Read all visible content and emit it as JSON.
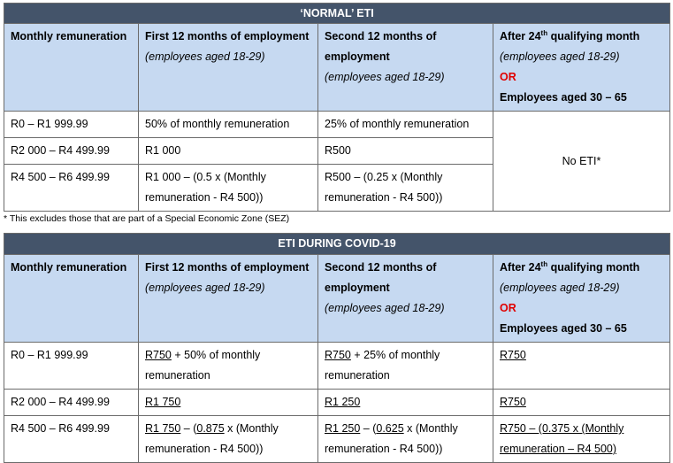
{
  "tables": [
    {
      "title": "‘NORMAL’ ETI",
      "headers": [
        {
          "main": "Monthly remuneration"
        },
        {
          "main": "First 12 months of employment",
          "sub": "(employees aged 18-29)"
        },
        {
          "main": "Second 12 months of employment",
          "sub": "(employees aged 18-29)"
        },
        {
          "main": "After 24",
          "sup": "th",
          "rest": " qualifying month",
          "sub": "(employees aged 18-29)",
          "or": "OR",
          "alt": "Employees aged 30 – 65"
        }
      ],
      "rows": [
        [
          "R0 – R1 999.99",
          "50% of monthly remuneration",
          "25% of monthly remuneration"
        ],
        [
          "R2 000 – R4 499.99",
          "R1 000",
          "R500"
        ],
        [
          "R4 500 – R6 499.99",
          "R1 000 – (0.5 x (Monthly remuneration - R4 500))",
          "R500 – (0.25 x (Monthly remuneration - R4 500))"
        ]
      ],
      "merged": "No ETI*",
      "footnote": "* This excludes those that are part of a Special Economic Zone (SEZ)"
    },
    {
      "title": "ETI DURING COVID-19",
      "headers": [
        {
          "main": "Monthly remuneration"
        },
        {
          "main": "First 12 months of employment",
          "sub": "(employees aged 18-29)"
        },
        {
          "main": "Second 12 months of employment",
          "sub": "(employees aged 18-29)"
        },
        {
          "main": "After 24",
          "sup": "th",
          "rest": " qualifying month",
          "sub": "(employees aged 18-29)",
          "or": "OR",
          "alt": "Employees aged 30 – 65"
        }
      ],
      "rows": [
        [
          "R0 – R1 999.99",
          [
            {
              "text": "R750",
              "underline": true
            },
            {
              "text": " + 50% of monthly remuneration"
            }
          ],
          [
            {
              "text": "R750",
              "underline": true
            },
            {
              "text": " + 25% of monthly remuneration"
            }
          ],
          [
            {
              "text": "R750",
              "underline": true
            }
          ]
        ],
        [
          "R2 000 – R4 499.99",
          [
            {
              "text": "R1 750",
              "underline": true
            }
          ],
          [
            {
              "text": "R1 250",
              "underline": true
            }
          ],
          [
            {
              "text": "R750",
              "underline": true
            }
          ]
        ],
        [
          "R4 500 – R6 499.99",
          [
            {
              "text": "R1 750",
              "underline": true
            },
            {
              "text": " – ("
            },
            {
              "text": "0.875",
              "underline": true
            },
            {
              "text": " x (Monthly remuneration - R4 500))"
            }
          ],
          [
            {
              "text": "R1 250",
              "underline": true
            },
            {
              "text": " – ("
            },
            {
              "text": "0.625",
              "underline": true
            },
            {
              "text": " x (Monthly remuneration - R4 500))"
            }
          ],
          [
            {
              "text": "R750 – (0.375 x (Monthly remuneration – R4 500)",
              "underline": true
            }
          ]
        ]
      ]
    }
  ]
}
